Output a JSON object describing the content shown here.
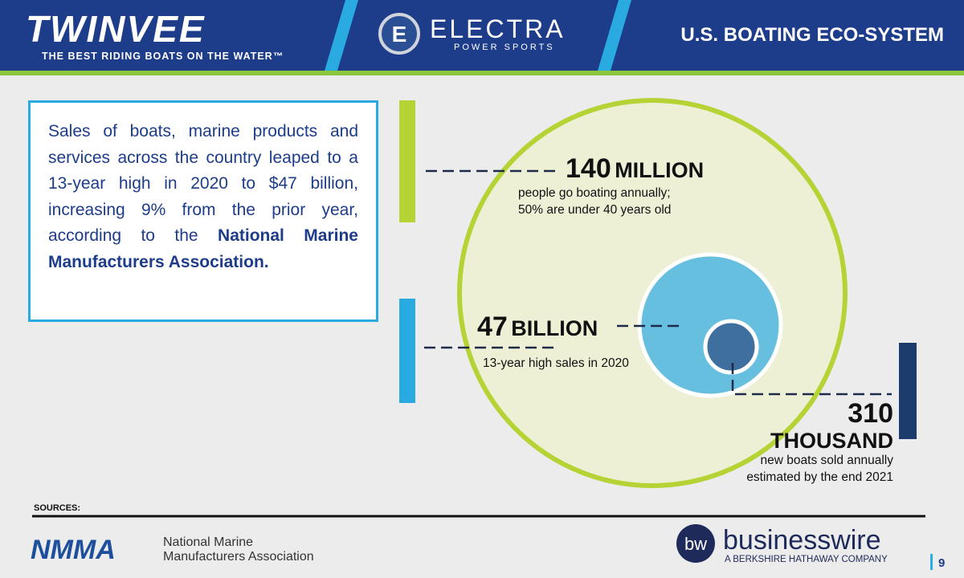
{
  "header": {
    "brand": "TWINVEE",
    "tagline": "THE BEST RIDING BOATS ON THE WATER™",
    "partner": "ELECTRA",
    "partner_sub": "POWER SPORTS",
    "partner_badge": "E",
    "title": "U.S. BOATING ECO-SYSTEM"
  },
  "intro": {
    "text": "Sales of boats, marine products and services across the country leaped to a 13-year high in 2020 to $47 billion, increasing 9% from the prior year, according to the",
    "emphasis": "National Marine Manufacturers Association."
  },
  "stats": [
    {
      "number": "140",
      "unit": "MILLION",
      "caption": [
        "people go boating annually;",
        "50% are under 40 years old"
      ]
    },
    {
      "number": "47",
      "unit": "BILLION",
      "caption": [
        "13-year high sales in 2020"
      ]
    },
    {
      "number": "310",
      "unit": "THOUSAND",
      "caption": [
        "new boats sold annually",
        "estimated by the end 2021"
      ]
    }
  ],
  "sources": {
    "label": "SOURCES:",
    "nmma_logo": "NMMA",
    "nmma_name": [
      "National Marine",
      "Manufacturers Association"
    ],
    "bw_badge": "bw",
    "bw_name": "businesswire",
    "bw_sub": "A BERKSHIRE HATHAWAY COMPANY"
  },
  "page_number": "9"
}
